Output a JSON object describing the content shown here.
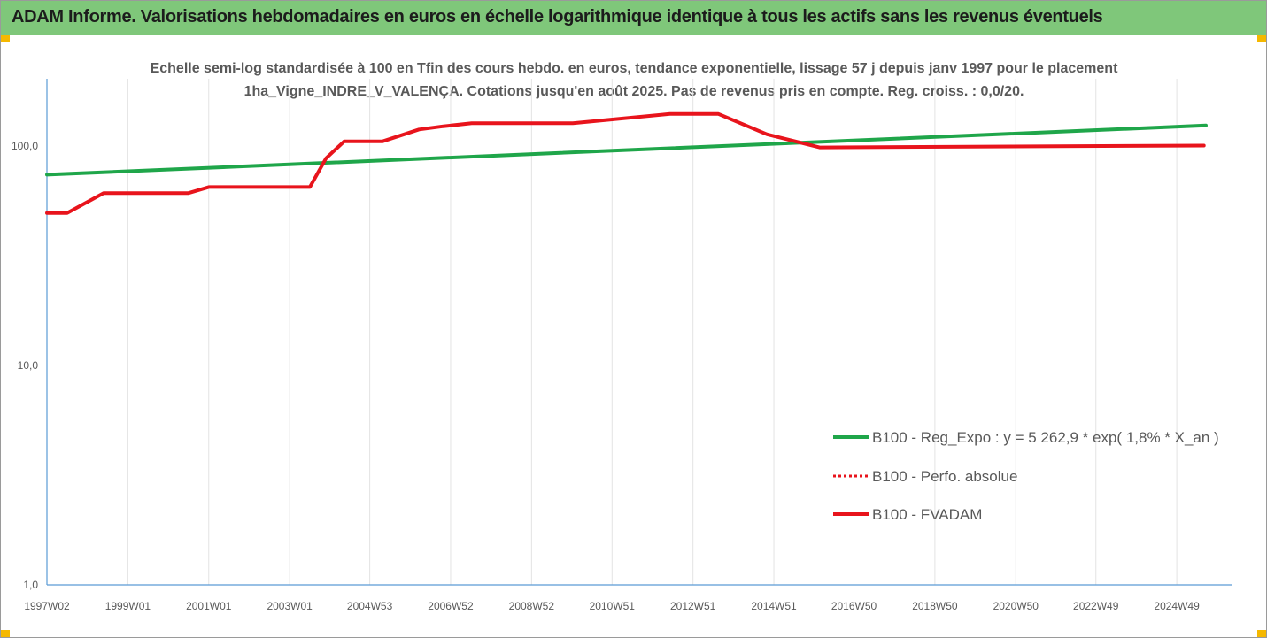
{
  "header": {
    "title": "ADAM Informe. Valorisations hebdomadaires en euros en échelle logarithmique identique à tous les actifs sans les revenus éventuels"
  },
  "chart_data": {
    "type": "line",
    "title": "Echelle semi-log standardisée à 100 en Tfin des cours hebdo. en euros, tendance exponentielle, lissage 57 j depuis janv 1997 pour le placement 1ha_Vigne_INDRE_V_VALENÇA. Cotations jusqu'en août 2025. Pas de revenus pris en compte. Reg. croiss. : 0,0/20.",
    "y_scale": "log",
    "ylim": [
      1,
      200
    ],
    "xlim": [
      1997.0,
      2025.65
    ],
    "y_ticks": [
      {
        "value": 1,
        "label": "1,0"
      },
      {
        "value": 10,
        "label": "10,0"
      },
      {
        "value": 100,
        "label": "100,0"
      }
    ],
    "x_ticks": [
      {
        "value": 1997.0,
        "label": "1997W02"
      },
      {
        "value": 1999.0,
        "label": "1999W01"
      },
      {
        "value": 2001.0,
        "label": "2001W01"
      },
      {
        "value": 2003.0,
        "label": "2003W01"
      },
      {
        "value": 2004.98,
        "label": "2004W53"
      },
      {
        "value": 2006.98,
        "label": "2006W52"
      },
      {
        "value": 2008.98,
        "label": "2008W52"
      },
      {
        "value": 2010.97,
        "label": "2010W51"
      },
      {
        "value": 2012.97,
        "label": "2012W51"
      },
      {
        "value": 2014.97,
        "label": "2014W51"
      },
      {
        "value": 2016.95,
        "label": "2016W50"
      },
      {
        "value": 2018.95,
        "label": "2018W50"
      },
      {
        "value": 2020.95,
        "label": "2020W50"
      },
      {
        "value": 2022.93,
        "label": "2022W49"
      },
      {
        "value": 2024.93,
        "label": "2024W49"
      }
    ],
    "grid": "vertical",
    "legend_position": "right",
    "series": [
      {
        "name": "B100 - Reg_Expo : y = 5 262,9 * exp( 1,8% * X_an )",
        "color": "#1fa64a",
        "style": "solid",
        "x": [
          1997.0,
          2025.65
        ],
        "y": [
          74,
          124
        ]
      },
      {
        "name": "B100 - Perfo. absolue",
        "color": "#e8141c",
        "style": "dotted",
        "x": [],
        "y": []
      },
      {
        "name": "B100 - FVADAM",
        "color": "#e8141c",
        "style": "solid",
        "x": [
          1997.0,
          1997.5,
          1998.4,
          2000.5,
          2001.0,
          2003.5,
          2003.9,
          2004.35,
          2005.3,
          2006.2,
          2006.8,
          2007.5,
          2010.0,
          2012.4,
          2013.0,
          2013.6,
          2014.8,
          2016.1,
          2025.6
        ],
        "y": [
          49.5,
          49.5,
          61,
          61,
          65,
          65,
          88,
          105,
          105,
          119,
          123,
          127,
          127,
          140,
          140,
          140,
          113,
          98.5,
          100.5
        ]
      }
    ]
  },
  "colors": {
    "banner": "#7fc77a",
    "corner_marks": "#f5b800",
    "axis": "#5b9bd5",
    "grid": "#e3e3e3"
  }
}
